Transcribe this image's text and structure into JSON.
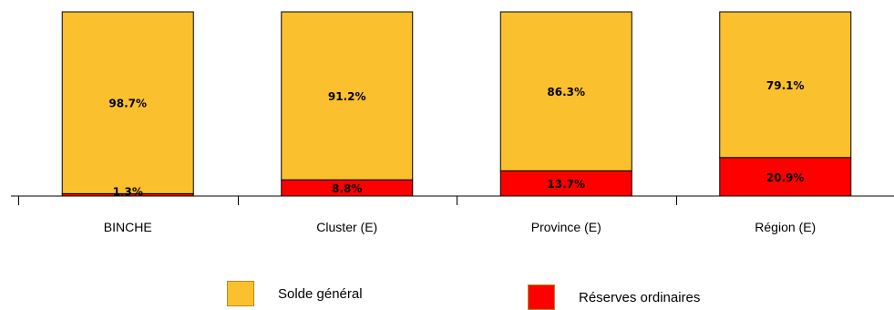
{
  "chart_data": {
    "type": "bar",
    "stacked": true,
    "normalized_percent": true,
    "categories": [
      "BINCHE",
      "Cluster (E)",
      "Province (E)",
      "Région (E)"
    ],
    "series": [
      {
        "name": "Réserves ordinaires",
        "color": "#ff0000",
        "values": [
          1.3,
          8.8,
          13.7,
          20.9
        ],
        "labels": [
          "1.3%",
          "8.8%",
          "13.7%",
          "20.9%"
        ]
      },
      {
        "name": "Solde général",
        "color": "#fbc02d",
        "values": [
          98.7,
          91.2,
          86.3,
          79.1
        ],
        "labels": [
          "98.7%",
          "91.2%",
          "86.3%",
          "79.1%"
        ]
      }
    ],
    "ylim": [
      0,
      100
    ],
    "title": "",
    "xlabel": "",
    "ylabel": "",
    "grid": false,
    "legend_position": "bottom"
  },
  "legend": {
    "items": [
      {
        "label": "Solde général",
        "color": "#fbc02d"
      },
      {
        "label": "Réserves ordinaires",
        "color": "#ff0000"
      }
    ]
  }
}
